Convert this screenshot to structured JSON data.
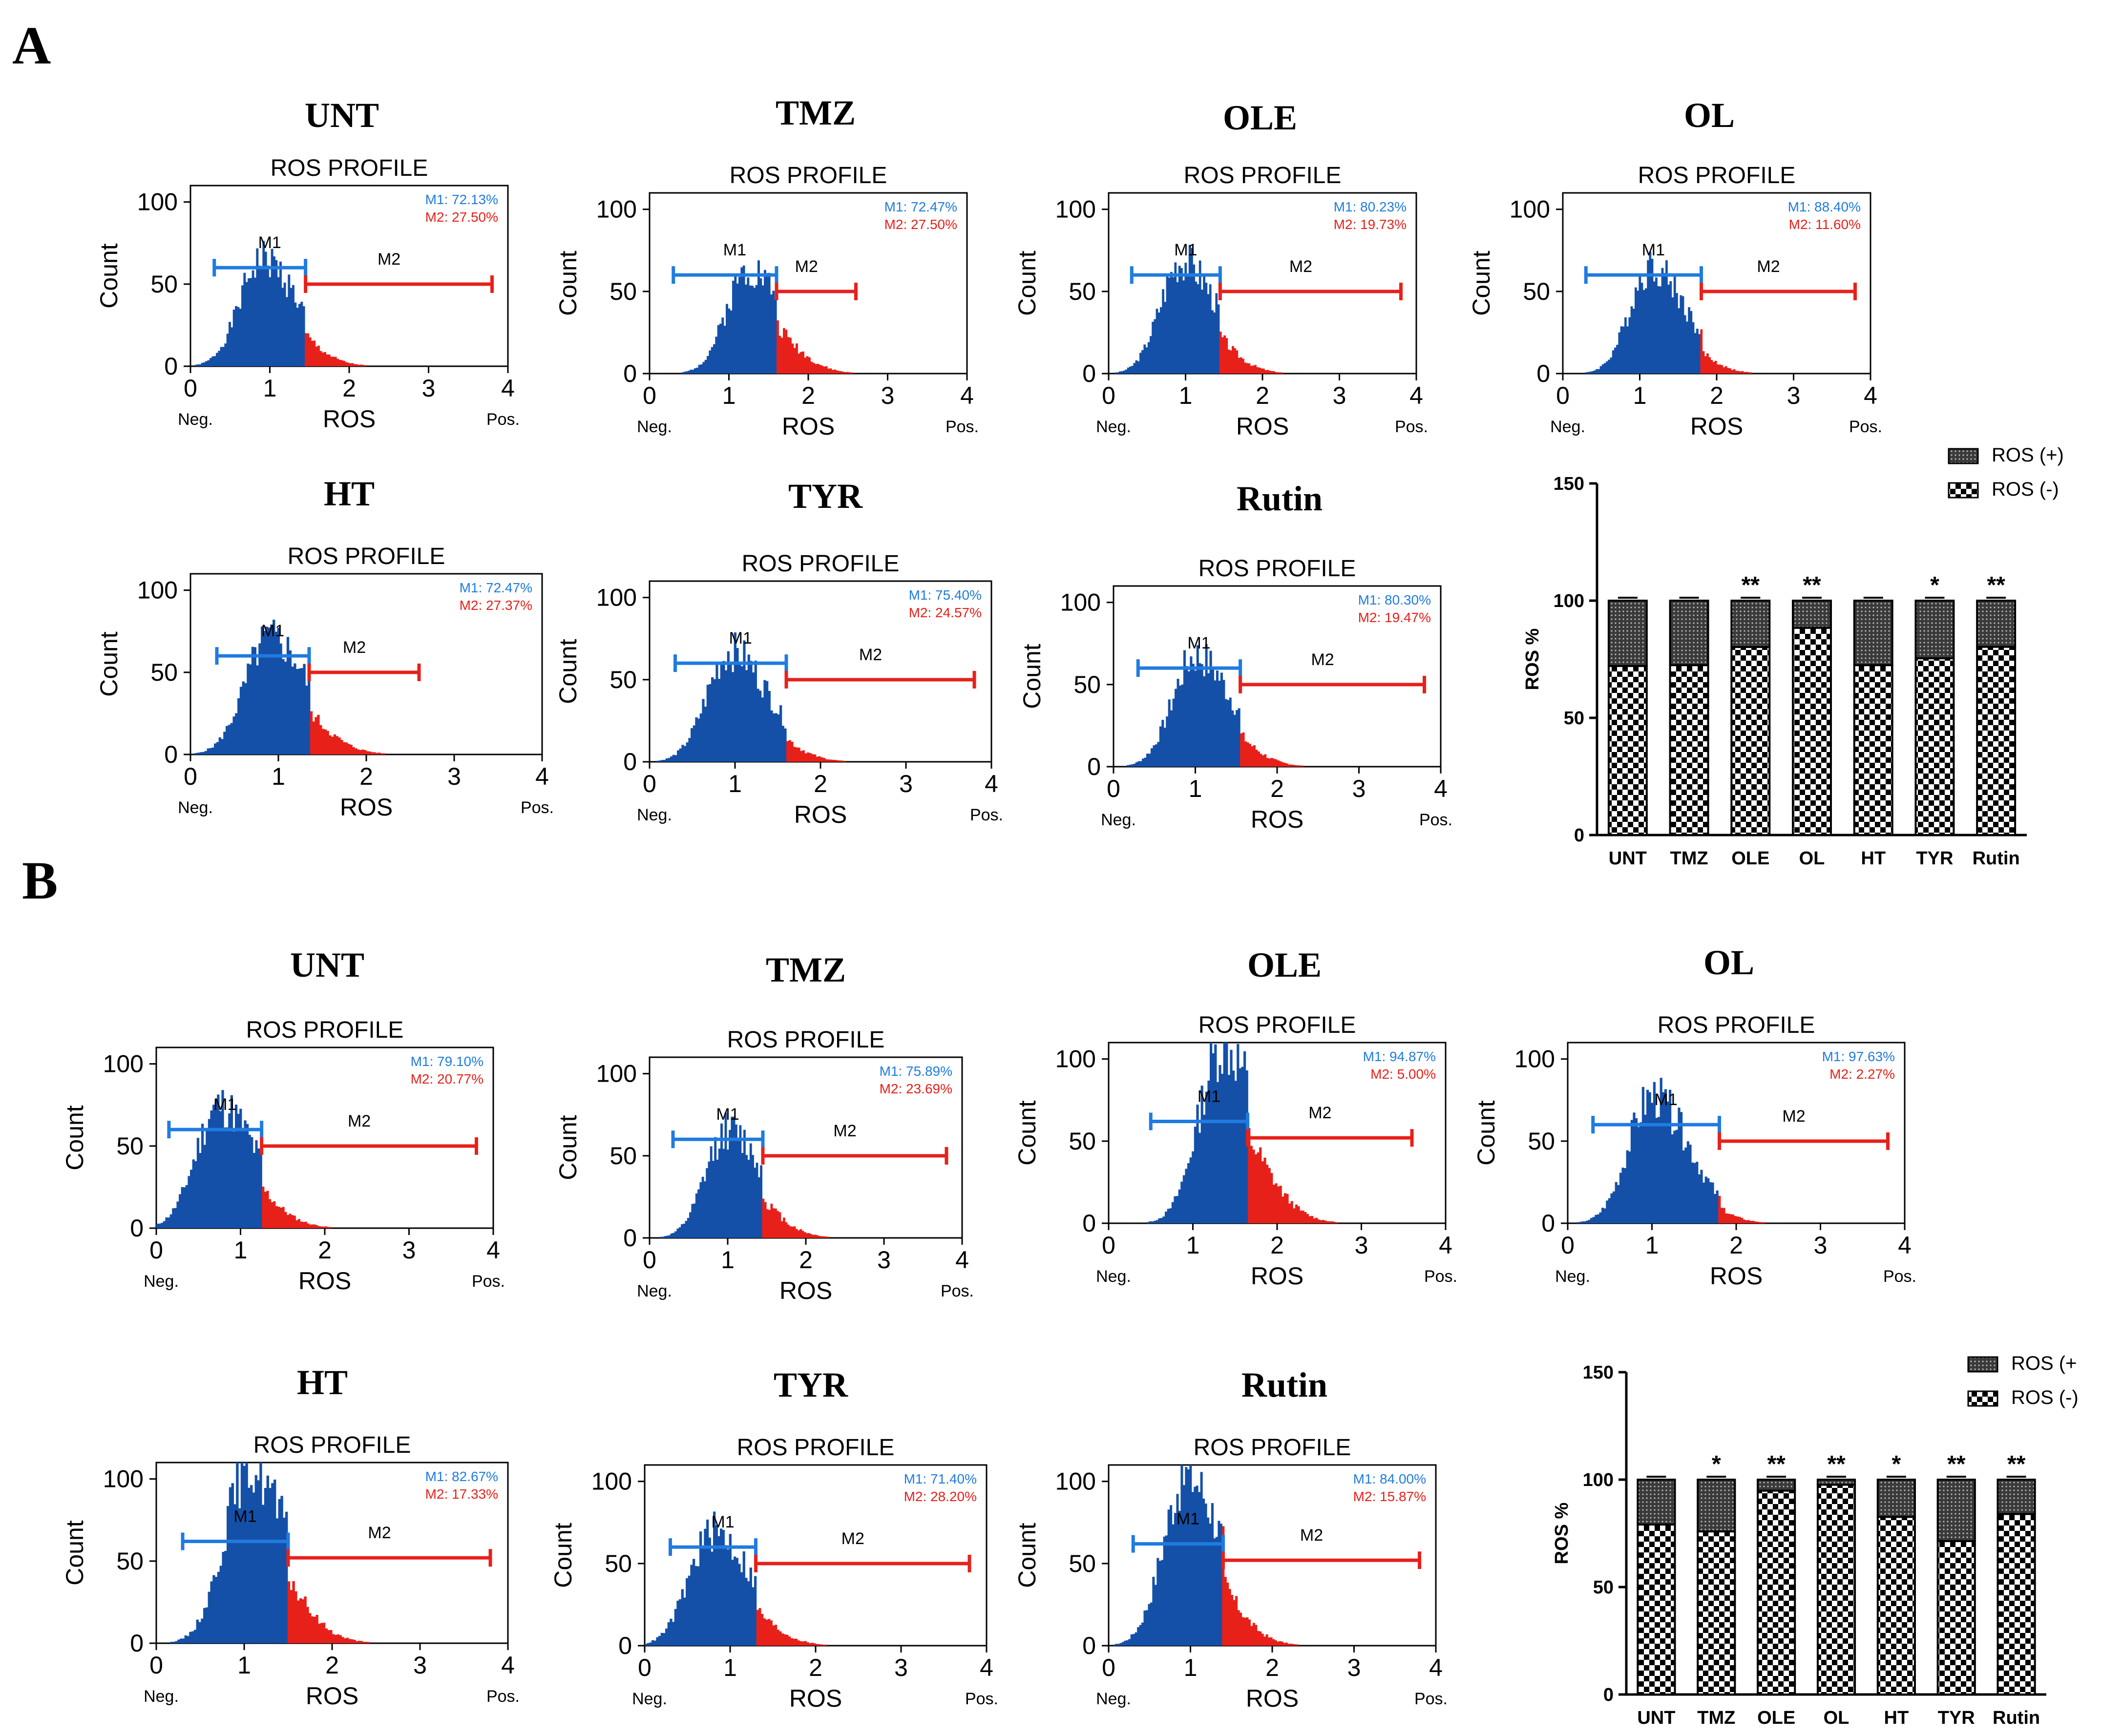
{
  "chart_data": [
    {
      "type": "figure-panel",
      "panel": "A",
      "histogram_title": "ROS PROFILE",
      "xlabel": "ROS",
      "ylabel": "Count",
      "x_neg_label": "Neg.",
      "x_pos_label": "Pos.",
      "xticks": [
        "0",
        "1",
        "2",
        "3",
        "4"
      ],
      "yticks": [
        "0",
        "50",
        "100"
      ],
      "xlim": [
        0,
        4
      ],
      "ylim": [
        0,
        110
      ],
      "gate_labels": [
        "M1",
        "M2"
      ],
      "histograms": [
        {
          "type": "histogram",
          "title": "UNT",
          "m1": "M1: 72.13%",
          "m2": "M2: 27.50%",
          "peak_x": 0.9,
          "peak_count": 68,
          "split_x": 1.45,
          "m1_gate": [
            0.3,
            1.45
          ],
          "m2_gate": [
            1.45,
            3.8
          ]
        },
        {
          "type": "histogram",
          "title": "TMZ",
          "m1": "M1: 72.47%",
          "m2": "M2: 27.50%",
          "peak_x": 1.25,
          "peak_count": 67,
          "split_x": 1.6,
          "m1_gate": [
            0.3,
            1.6
          ],
          "m2_gate": [
            1.6,
            2.6
          ]
        },
        {
          "type": "histogram",
          "title": "OLE",
          "m1": "M1: 80.23%",
          "m2": "M2: 19.73%",
          "peak_x": 0.95,
          "peak_count": 72,
          "split_x": 1.45,
          "m1_gate": [
            0.3,
            1.45
          ],
          "m2_gate": [
            1.45,
            3.8
          ]
        },
        {
          "type": "histogram",
          "title": "OL",
          "m1": "M1: 88.40%",
          "m2": "M2: 11.60%",
          "peak_x": 1.15,
          "peak_count": 68,
          "split_x": 1.8,
          "m1_gate": [
            0.3,
            1.8
          ],
          "m2_gate": [
            1.8,
            3.8
          ]
        },
        {
          "type": "histogram",
          "title": "HT",
          "m1": "M1: 72.47%",
          "m2": "M2: 27.37%",
          "peak_x": 0.9,
          "peak_count": 74,
          "split_x": 1.35,
          "m1_gate": [
            0.3,
            1.35
          ],
          "m2_gate": [
            1.35,
            2.6
          ]
        },
        {
          "type": "histogram",
          "title": "TYR",
          "m1": "M1: 75.40%",
          "m2": "M2: 24.57%",
          "peak_x": 0.95,
          "peak_count": 70,
          "split_x": 1.6,
          "m1_gate": [
            0.3,
            1.6
          ],
          "m2_gate": [
            1.6,
            3.8
          ]
        },
        {
          "type": "histogram",
          "title": "Rutin",
          "m1": "M1: 80.30%",
          "m2": "M2: 19.47%",
          "peak_x": 1.0,
          "peak_count": 70,
          "split_x": 1.55,
          "m1_gate": [
            0.3,
            1.55
          ],
          "m2_gate": [
            1.55,
            3.8
          ]
        }
      ],
      "bar_chart": {
        "type": "bar",
        "stacked": true,
        "categories": [
          "UNT",
          "TMZ",
          "OLE",
          "OL",
          "HT",
          "TYR",
          "Rutin"
        ],
        "series": [
          {
            "name": "ROS (-)",
            "values": [
              72.13,
              72.47,
              80.23,
              88.4,
              72.47,
              75.4,
              80.3
            ]
          },
          {
            "name": "ROS (+)",
            "values": [
              27.87,
              27.53,
              19.77,
              11.6,
              27.53,
              24.6,
              19.7
            ]
          }
        ],
        "significance": [
          "",
          "",
          "**",
          "**",
          "",
          "*",
          "**"
        ],
        "ylabel": "ROS %",
        "yticks": [
          "0",
          "50",
          "100",
          "150"
        ],
        "ylim": [
          0,
          150
        ],
        "legend": [
          "ROS (+)",
          "ROS (-)"
        ]
      }
    },
    {
      "type": "figure-panel",
      "panel": "B",
      "histogram_title": "ROS PROFILE",
      "xlabel": "ROS",
      "ylabel": "Count",
      "x_neg_label": "Neg.",
      "x_pos_label": "Pos.",
      "xticks": [
        "0",
        "1",
        "2",
        "3",
        "4"
      ],
      "yticks": [
        "0",
        "50",
        "100"
      ],
      "xlim": [
        0,
        4
      ],
      "ylim": [
        0,
        110
      ],
      "gate_labels": [
        "M1",
        "M2"
      ],
      "histograms": [
        {
          "type": "histogram",
          "title": "UNT",
          "m1": "M1: 79.10%",
          "m2": "M2: 20.77%",
          "peak_x": 0.75,
          "peak_count": 78,
          "split_x": 1.25,
          "m1_gate": [
            0.15,
            1.25
          ],
          "m2_gate": [
            1.25,
            3.8
          ]
        },
        {
          "type": "histogram",
          "title": "TMZ",
          "m1": "M1: 75.89%",
          "m2": "M2: 23.69%",
          "peak_x": 1.0,
          "peak_count": 68,
          "split_x": 1.45,
          "m1_gate": [
            0.3,
            1.45
          ],
          "m2_gate": [
            1.45,
            3.8
          ]
        },
        {
          "type": "histogram",
          "title": "OLE",
          "m1": "M1: 94.87%",
          "m2": "M2: 5.00%",
          "peak_x": 1.35,
          "peak_count": 112,
          "split_x": 1.65,
          "m1_gate": [
            0.5,
            1.65
          ],
          "m2_gate": [
            1.65,
            3.6
          ]
        },
        {
          "type": "histogram",
          "title": "OL",
          "m1": "M1: 97.63%",
          "m2": "M2: 2.27%",
          "peak_x": 1.0,
          "peak_count": 80,
          "split_x": 1.8,
          "m1_gate": [
            0.3,
            1.8
          ],
          "m2_gate": [
            1.8,
            3.8
          ]
        },
        {
          "type": "histogram",
          "title": "HT",
          "m1": "M1: 82.67%",
          "m2": "M2: 17.33%",
          "peak_x": 1.05,
          "peak_count": 112,
          "split_x": 1.5,
          "m1_gate": [
            0.3,
            1.5
          ],
          "m2_gate": [
            1.5,
            3.8
          ]
        },
        {
          "type": "histogram",
          "title": "TYR",
          "m1": "M1: 71.40%",
          "m2": "M2: 28.20%",
          "peak_x": 0.8,
          "peak_count": 72,
          "split_x": 1.3,
          "m1_gate": [
            0.3,
            1.3
          ],
          "m2_gate": [
            1.3,
            3.8
          ]
        },
        {
          "type": "histogram",
          "title": "Rutin",
          "m1": "M1: 84.00%",
          "m2": "M2: 15.87%",
          "peak_x": 0.95,
          "peak_count": 108,
          "split_x": 1.4,
          "m1_gate": [
            0.3,
            1.4
          ],
          "m2_gate": [
            1.4,
            3.8
          ]
        }
      ],
      "bar_chart": {
        "type": "bar",
        "stacked": true,
        "categories": [
          "UNT",
          "TMZ",
          "OLE",
          "OL",
          "HT",
          "TYR",
          "Rutin"
        ],
        "series": [
          {
            "name": "ROS (-)",
            "values": [
              79.1,
              75.89,
              94.87,
              97.63,
              82.67,
              71.4,
              84.0
            ]
          },
          {
            "name": "ROS (+)",
            "values": [
              20.9,
              24.11,
              5.13,
              2.37,
              17.33,
              28.6,
              16.0
            ]
          }
        ],
        "significance": [
          "",
          "*",
          "**",
          "**",
          "*",
          "**",
          "**"
        ],
        "ylabel": "ROS %",
        "yticks": [
          "0",
          "50",
          "100",
          "150"
        ],
        "ylim": [
          0,
          150
        ],
        "legend": [
          "ROS (+",
          "ROS (-)"
        ]
      }
    }
  ],
  "colors": {
    "m1": "#1450a8",
    "m2": "#e8201a",
    "gate_blue": "#1f7be0",
    "gate_red": "#e8201a",
    "axis": "#000000"
  }
}
